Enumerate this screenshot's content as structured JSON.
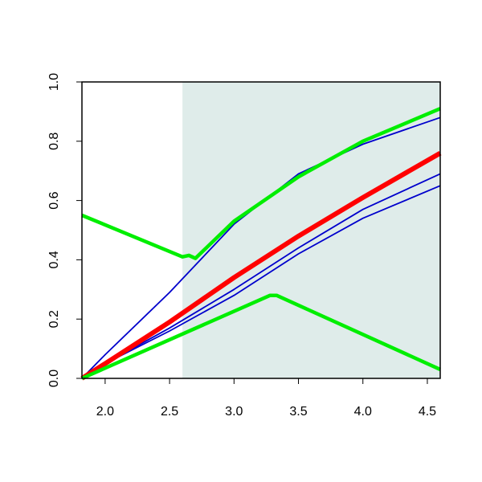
{
  "chart_data": {
    "type": "line",
    "xlim": [
      1.82,
      4.6
    ],
    "ylim": [
      0,
      1
    ],
    "xticks": [
      {
        "value": 2,
        "label": "2.0"
      },
      2.5,
      {
        "value": 3,
        "label": "3.0"
      },
      3.5,
      {
        "value": 4,
        "label": "4.0"
      },
      4.5
    ],
    "yticks": [
      {
        "value": 0,
        "label": "0.0"
      },
      0.2,
      0.4,
      0.6,
      0.8,
      {
        "value": 1,
        "label": "1.0"
      }
    ],
    "shade": {
      "x": [
        2.6,
        4.6
      ],
      "color": "#dfecea"
    },
    "series": [
      {
        "color": "#0000cc",
        "x": [
          1.82,
          2.0,
          2.5,
          3.0,
          3.5,
          4.0,
          4.6
        ],
        "values": [
          0,
          0.08,
          0.29,
          0.52,
          0.69,
          0.79,
          0.88
        ]
      },
      {
        "color": "#0000cc",
        "x": [
          1.82,
          2.0,
          2.5,
          3.0,
          3.5,
          4.0,
          4.6
        ],
        "values": [
          0,
          0.05,
          0.17,
          0.3,
          0.44,
          0.57,
          0.69
        ]
      },
      {
        "color": "#0000cc",
        "x": [
          1.82,
          2.0,
          2.5,
          3.0,
          3.5,
          4.0,
          4.6
        ],
        "values": [
          0,
          0.05,
          0.16,
          0.28,
          0.42,
          0.54,
          0.65
        ]
      },
      {
        "color": "#ff0000",
        "x": [
          1.82,
          2.0,
          2.5,
          3.0,
          3.5,
          4.0,
          4.6
        ],
        "values": [
          0,
          0.05,
          0.19,
          0.34,
          0.48,
          0.61,
          0.76
        ]
      },
      {
        "color": "#00ee00",
        "x": [
          1.82,
          2.6,
          2.65,
          2.7,
          3.0,
          3.5,
          4.0,
          4.6
        ],
        "values": [
          0.55,
          0.41,
          0.415,
          0.405,
          0.53,
          0.68,
          0.8,
          0.91
        ]
      },
      {
        "color": "#00ee00",
        "x": [
          1.82,
          3.28,
          3.33,
          4.6
        ],
        "values": [
          0,
          0.28,
          0.28,
          0.03
        ]
      }
    ]
  }
}
